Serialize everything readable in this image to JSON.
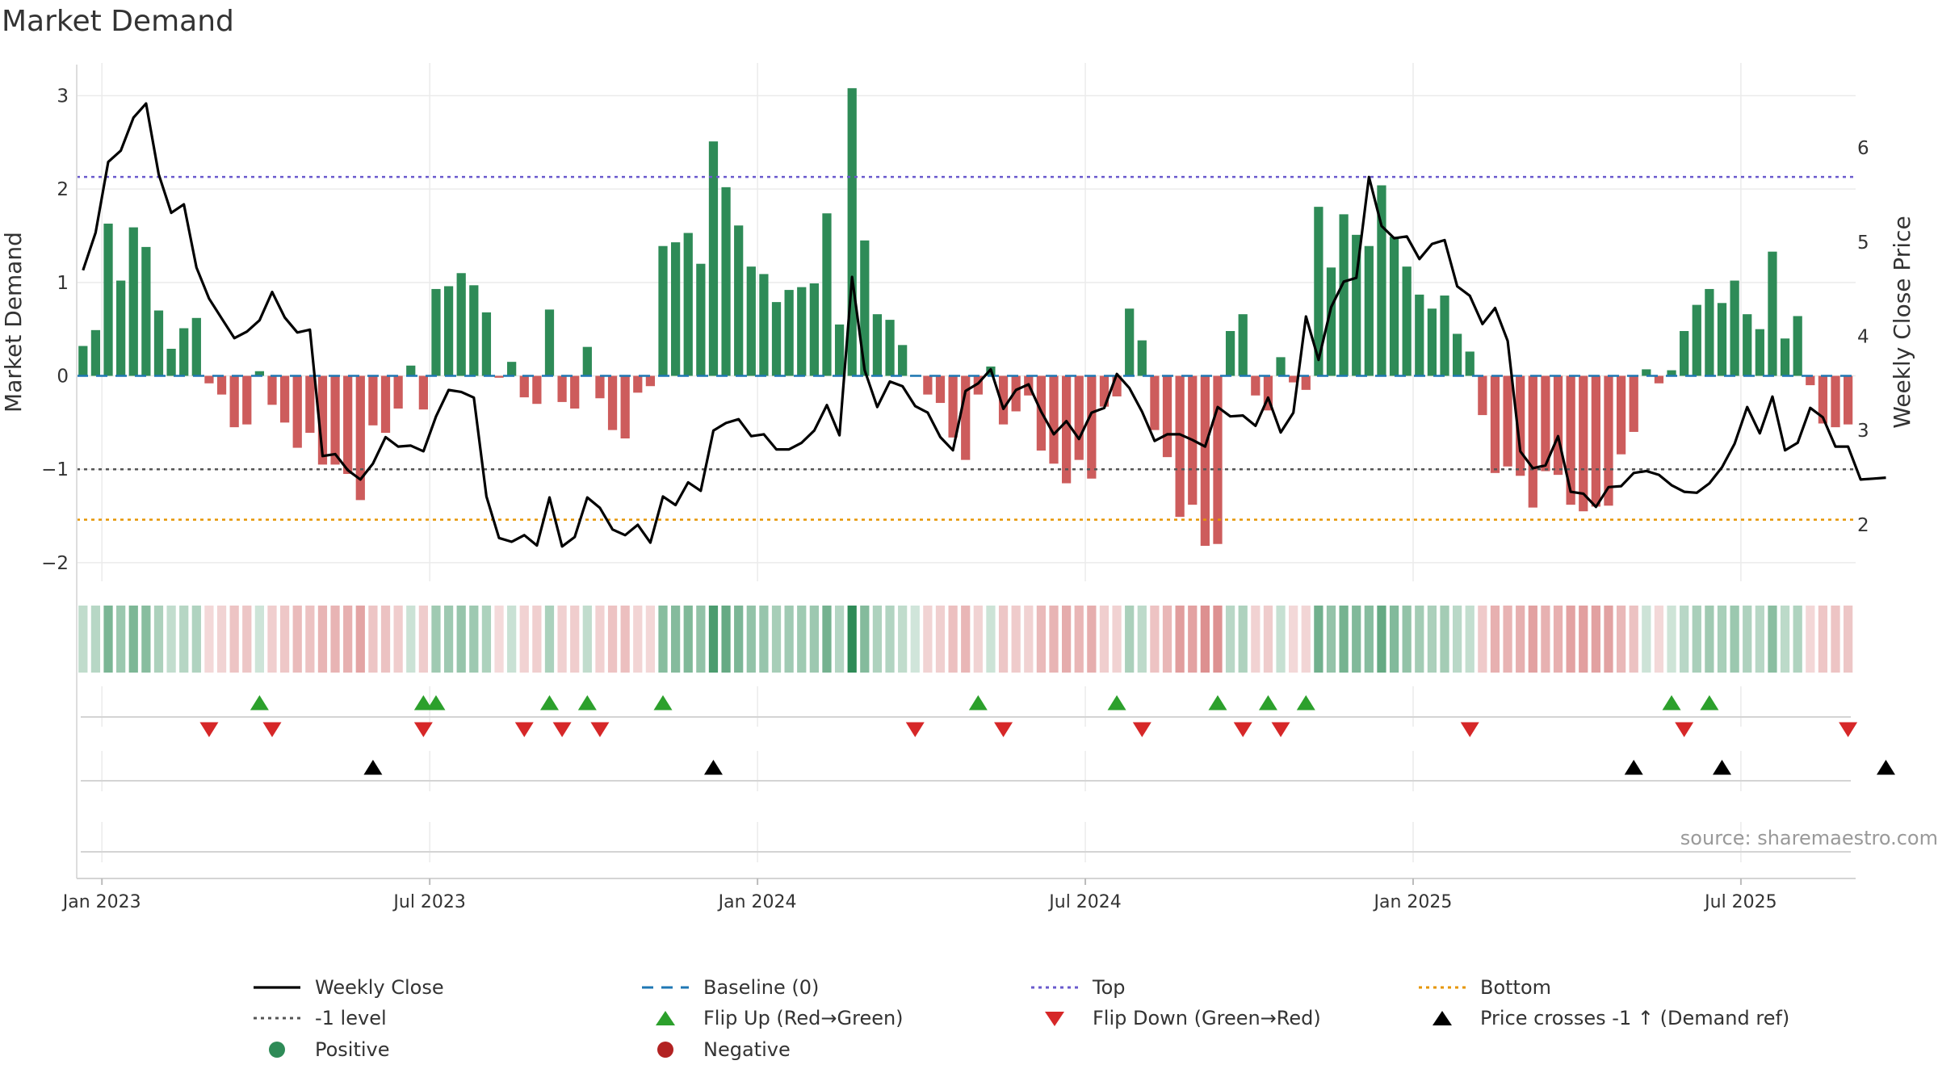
{
  "title": "Market Demand",
  "source": "source: sharemaestro.com",
  "colors": {
    "positive": "#2e8b57",
    "negative": "#cd5c5c",
    "close": "#000000",
    "baseline": "#1f77b4",
    "top": "#6a5acd",
    "bottom": "#e69500",
    "minus1": "#555555",
    "flip_up": "#2ca02c",
    "flip_down": "#d62728",
    "cross": "#000000"
  },
  "chart_data": {
    "type": "bar",
    "title": "Market Demand",
    "ylabel": "Market Demand",
    "y2label": "Weekly Close Price",
    "ylim": [
      -2.2,
      3.35
    ],
    "y2lim": [
      1.4,
      6.9
    ],
    "yticks": [
      "3",
      "2",
      "1",
      "0",
      "−1",
      "−2"
    ],
    "ytick_values": [
      3,
      2,
      1,
      0,
      -1,
      -2
    ],
    "y2ticks": [
      "6",
      "5",
      "4",
      "3",
      "2"
    ],
    "y2tick_values": [
      6,
      5,
      4,
      3,
      2
    ],
    "x_labels": [
      "Jan 2023",
      "Jul 2023",
      "Jan 2024",
      "Jul 2024",
      "Jan 2025",
      "Jul 2025"
    ],
    "x_label_weeks": [
      1.5,
      27.5,
      53.5,
      79.5,
      105.5,
      131.5
    ],
    "reference_lines": {
      "top": 2.13,
      "bottom": -1.54,
      "minus1": -1.0,
      "baseline": 0
    },
    "demand": [
      0.32,
      0.49,
      1.63,
      1.02,
      1.59,
      1.38,
      0.7,
      0.29,
      0.51,
      0.62,
      -0.08,
      -0.2,
      -0.55,
      -0.52,
      0.05,
      -0.31,
      -0.5,
      -0.77,
      -0.61,
      -0.95,
      -0.95,
      -1.05,
      -1.33,
      -0.53,
      -0.61,
      -0.35,
      0.11,
      -0.36,
      0.93,
      0.96,
      1.1,
      0.97,
      0.68,
      -0.02,
      0.15,
      -0.23,
      -0.3,
      0.71,
      -0.28,
      -0.35,
      0.31,
      -0.24,
      -0.58,
      -0.67,
      -0.18,
      -0.11,
      1.39,
      1.43,
      1.53,
      1.2,
      2.51,
      2.02,
      1.61,
      1.17,
      1.09,
      0.79,
      0.92,
      0.95,
      0.99,
      1.74,
      0.55,
      3.08,
      1.45,
      0.66,
      0.6,
      0.33,
      0.01,
      -0.2,
      -0.29,
      -0.66,
      -0.9,
      -0.2,
      0.1,
      -0.52,
      -0.38,
      -0.21,
      -0.8,
      -0.94,
      -1.15,
      -0.9,
      -1.1,
      -0.33,
      -0.22,
      0.72,
      0.38,
      -0.58,
      -0.87,
      -1.51,
      -1.38,
      -1.82,
      -1.8,
      0.48,
      0.66,
      -0.21,
      -0.37,
      0.2,
      -0.07,
      -0.15,
      1.81,
      1.16,
      1.73,
      1.51,
      1.39,
      2.04,
      1.49,
      1.17,
      0.87,
      0.72,
      0.86,
      0.45,
      0.26,
      -0.42,
      -1.04,
      -0.97,
      -1.07,
      -1.41,
      -1.02,
      -1.06,
      -1.38,
      -1.45,
      -1.4,
      -1.39,
      -0.84,
      -0.6,
      0.07,
      -0.08,
      0.06,
      0.48,
      0.76,
      0.93,
      0.78,
      1.02,
      0.66,
      0.5,
      1.33,
      0.4,
      0.64,
      -0.1,
      -0.51,
      -0.55,
      -0.52
    ],
    "close": [
      4.7,
      5.1,
      5.85,
      5.97,
      6.32,
      6.47,
      5.72,
      5.31,
      5.4,
      4.73,
      4.4,
      4.19,
      3.98,
      4.05,
      4.17,
      4.47,
      4.2,
      4.04,
      4.07,
      2.73,
      2.75,
      2.58,
      2.48,
      2.65,
      2.93,
      2.83,
      2.84,
      2.78,
      3.15,
      3.43,
      3.41,
      3.35,
      2.3,
      1.86,
      1.82,
      1.89,
      1.78,
      2.29,
      1.77,
      1.87,
      2.29,
      2.18,
      1.95,
      1.89,
      2.0,
      1.81,
      2.3,
      2.21,
      2.45,
      2.36,
      3.0,
      3.08,
      3.12,
      2.94,
      2.96,
      2.8,
      2.8,
      2.87,
      3.0,
      3.27,
      2.95,
      4.63,
      3.64,
      3.25,
      3.52,
      3.47,
      3.26,
      3.19,
      2.93,
      2.79,
      3.42,
      3.5,
      3.65,
      3.23,
      3.43,
      3.49,
      3.2,
      2.96,
      3.1,
      2.91,
      3.19,
      3.24,
      3.6,
      3.45,
      3.2,
      2.89,
      2.96,
      2.96,
      2.9,
      2.83,
      3.25,
      3.15,
      3.16,
      3.05,
      3.35,
      2.98,
      3.19,
      4.21,
      3.75,
      4.31,
      4.58,
      4.62,
      5.69,
      5.17,
      5.04,
      5.06,
      4.82,
      4.98,
      5.02,
      4.53,
      4.43,
      4.13,
      4.3,
      3.95,
      2.78,
      2.6,
      2.63,
      2.94,
      2.35,
      2.33,
      2.19,
      2.4,
      2.41,
      2.55,
      2.57,
      2.53,
      2.42,
      2.35,
      2.34,
      2.44,
      2.61,
      2.86,
      3.25,
      2.97,
      3.36,
      2.79,
      2.87,
      3.24,
      3.14,
      2.83,
      2.83,
      2.48,
      2.49,
      2.5
    ],
    "flip_up_weeks": [
      14,
      27,
      28,
      37,
      40,
      46,
      71,
      82,
      90,
      94,
      97,
      126,
      129
    ],
    "flip_down_weeks": [
      10,
      15,
      27,
      35,
      38,
      41,
      66,
      73,
      84,
      92,
      95,
      110,
      127,
      140
    ],
    "cross_up_weeks": [
      23,
      50,
      123,
      130,
      143
    ],
    "legend": [
      {
        "label": "Weekly Close",
        "marker": "solid-line",
        "color": "#000000"
      },
      {
        "label": "Baseline (0)",
        "marker": "dashed-line",
        "color": "#1f77b4"
      },
      {
        "label": "Top",
        "marker": "dotted-line",
        "color": "#6a5acd"
      },
      {
        "label": "Bottom",
        "marker": "dotted-line",
        "color": "#e69500"
      },
      {
        "label": "-1 level",
        "marker": "dotted-line",
        "color": "#555555"
      },
      {
        "label": "Flip Up (Red→Green)",
        "marker": "triangle-up",
        "color": "#2ca02c"
      },
      {
        "label": "Flip Down (Green→Red)",
        "marker": "triangle-down",
        "color": "#d62728"
      },
      {
        "label": "Price crosses -1 ↑ (Demand ref)",
        "marker": "triangle-up",
        "color": "#000000"
      },
      {
        "label": "Positive",
        "marker": "circle",
        "color": "#2e8b57"
      },
      {
        "label": "Negative",
        "marker": "circle",
        "color": "#b22222"
      }
    ]
  }
}
